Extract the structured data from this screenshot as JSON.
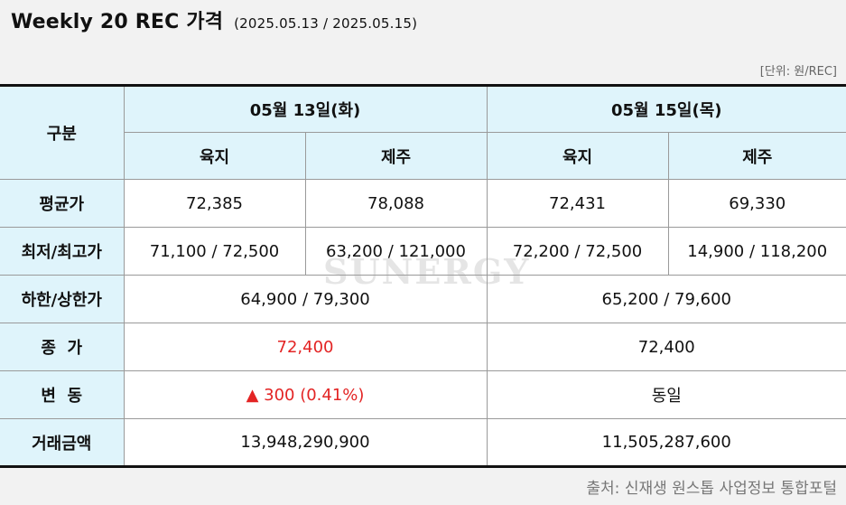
{
  "title": "Weekly 20 REC 가격",
  "date_range": "(2025.05.13 / 2025.05.15)",
  "unit": "[단위: 원/REC]",
  "watermark": "SUNERGY",
  "source": "출처: 신재생 원스톱 사업정보 통합포털",
  "table": {
    "category_header": "구분",
    "dates": [
      "05월 13일(화)",
      "05월 15일(목)"
    ],
    "regions": [
      "육지",
      "제주",
      "육지",
      "제주"
    ],
    "rows": {
      "avg": {
        "label": "평균가",
        "values": [
          "72,385",
          "78,088",
          "72,431",
          "69,330"
        ]
      },
      "minmax": {
        "label": "최저/최고가",
        "values": [
          "71,100 / 72,500",
          "63,200 / 121,000",
          "72,200 / 72,500",
          "14,900 / 118,200"
        ]
      },
      "limits": {
        "label": "하한/상한가",
        "values": [
          "64,900 / 79,300",
          "65,200 / 79,600"
        ]
      },
      "close": {
        "label": "종  가",
        "values": [
          "72,400",
          "72,400"
        ]
      },
      "change": {
        "label": "변  동",
        "values": [
          "▲ 300 (0.41%)",
          "동일"
        ]
      },
      "volume": {
        "label": "거래금액",
        "values": [
          "13,948,290,900",
          "11,505,287,600"
        ]
      }
    }
  },
  "colors": {
    "header_bg": "#dff4fb",
    "up": "#e32424",
    "border_strong": "#111111",
    "border": "#9a9a9a"
  }
}
